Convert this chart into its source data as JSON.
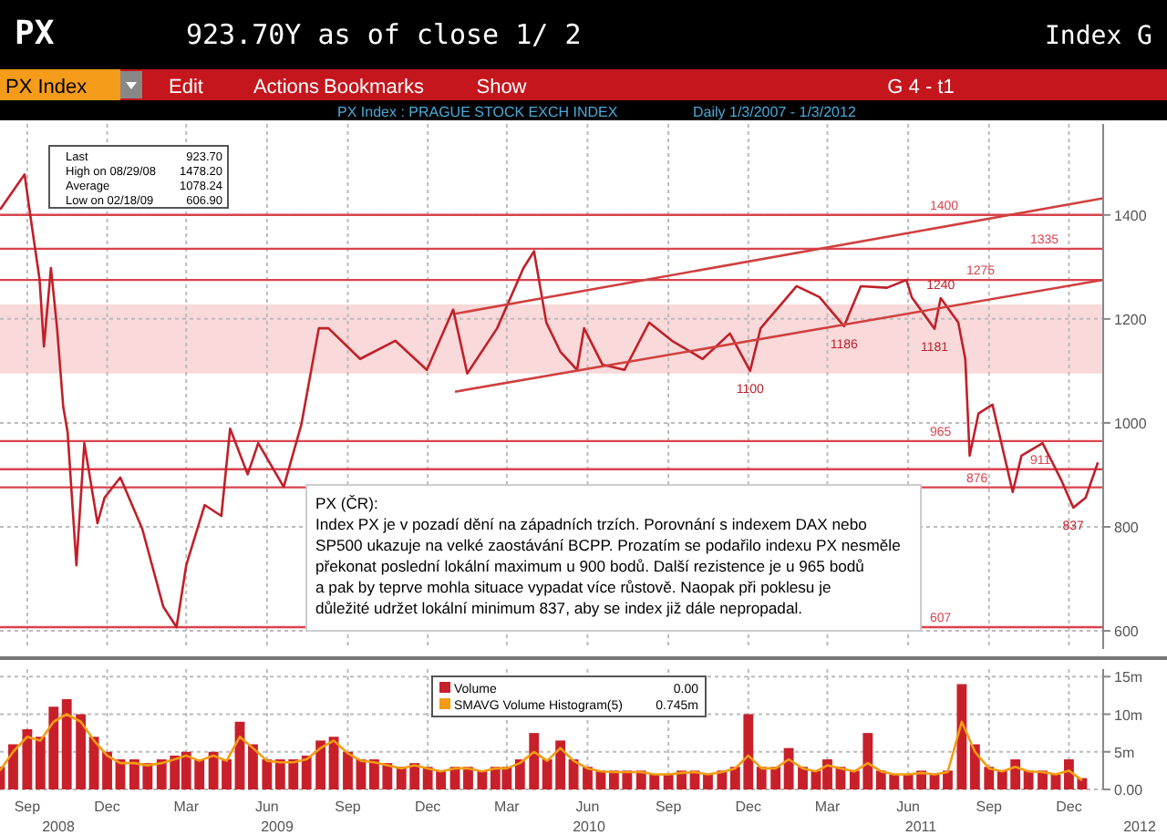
{
  "chart_data": [
    {
      "type": "line",
      "title": "PX Index  :  PRAGUE STOCK EXCH INDEX",
      "subtitle": "Daily    1/3/2007 - 1/3/2012",
      "annotations": [
        "PX",
        "923.70Y as of close  1/ 2",
        "Index G",
        "PX Index",
        "Edit",
        "Actions",
        "Bookmarks",
        "Show",
        "G 4 - t1",
        "Last",
        "923.70",
        "High on 08/29/08",
        "1478.20",
        "Average",
        "1078.24",
        "Low on 02/18/09",
        "606.90",
        "PX (ČR):\nIndex PX je v pozadí dění na západních trzích. Porovnání s indexem DAX nebo\nSP500 ukazuje na velké zaostávání BCPP. Prozatím se podařilo indexu PX nesměle\npřekonat poslední lokální maximum u 900 bodů. Další rezistence je u 965 bodů\na pak by teprve mohla situace vypadat více růstově. Naopak při poklesu je\ndůležité udržet lokální minimum 837, aby se index již dále nepropadal.",
        {
          "text": "1240",
          "x": "2011-07-08",
          "y": 1240
        },
        {
          "text": "1186",
          "x": "2011-03-20",
          "y": 1186
        },
        {
          "text": "1181",
          "x": "2011-07-01",
          "y": 1181
        },
        {
          "text": "1100",
          "x": "2010-12-03",
          "y": 1100
        },
        {
          "text": "837",
          "x": "2011-12-06",
          "y": 837
        }
      ],
      "series": [
        {
          "color": "#c0202a",
          "x": [
            "2008-08-01",
            "2008-08-29",
            "2008-09-05",
            "2008-09-15",
            "2008-09-20",
            "2008-09-28",
            "2008-10-05",
            "2008-10-12",
            "2008-10-17",
            "2008-10-27",
            "2008-11-05",
            "2008-11-20",
            "2008-11-28",
            "2008-12-16",
            "2009-01-10",
            "2009-02-03",
            "2009-02-18",
            "2009-03-01",
            "2009-03-22",
            "2009-04-10",
            "2009-04-20",
            "2009-05-10",
            "2009-05-22",
            "2009-06-20",
            "2009-07-10",
            "2009-07-30",
            "2009-08-10",
            "2009-09-15",
            "2009-10-25",
            "2009-11-30",
            "2009-12-30",
            "2010-01-15",
            "2010-02-18",
            "2010-03-20",
            "2010-04-01",
            "2010-04-15",
            "2010-05-01",
            "2010-05-20",
            "2010-05-28",
            "2010-06-18",
            "2010-07-13",
            "2010-08-10",
            "2010-09-05",
            "2010-10-10",
            "2010-11-10",
            "2010-12-03",
            "2010-12-15",
            "2011-01-25",
            "2011-02-20",
            "2011-03-20",
            "2011-04-08",
            "2011-05-08",
            "2011-05-30",
            "2011-06-05",
            "2011-07-01",
            "2011-07-08",
            "2011-07-28",
            "2011-08-05",
            "2011-08-10",
            "2011-08-20",
            "2011-09-05",
            "2011-09-28",
            "2011-10-08",
            "2011-11-01",
            "2011-11-22",
            "2011-12-06",
            "2011-12-20",
            "2012-01-03"
          ],
          "values": [
            1410,
            1478,
            1393,
            1277,
            1147,
            1298,
            1182,
            1031,
            982,
            726,
            961,
            807,
            856,
            895,
            796,
            646,
            607,
            726,
            842,
            821,
            989,
            901,
            961,
            877,
            996,
            1182,
            1182,
            1123,
            1158,
            1102,
            1218,
            1095,
            1182,
            1298,
            1330,
            1193,
            1137,
            1102,
            1182,
            1112,
            1102,
            1193,
            1158,
            1123,
            1172,
            1100,
            1182,
            1263,
            1242,
            1186,
            1263,
            1260,
            1275,
            1242,
            1181,
            1240,
            1193,
            1123,
            937,
            1018,
            1035,
            867,
            937,
            961,
            891,
            837,
            856,
            924
          ]
        },
        {
          "type": "line",
          "color": "#d04040",
          "x": [
            "2010-01-01",
            "2012-01-09"
          ],
          "values": [
            1210,
            1432
          ]
        },
        {
          "type": "line",
          "color": "#d04040",
          "x": [
            "2010-01-01",
            "2012-01-09"
          ],
          "values": [
            1060,
            1275
          ]
        }
      ],
      "bands": [
        {
          "axis": "y",
          "from": 1095,
          "to": 1228,
          "color": "#f8d0d0"
        }
      ],
      "ref_lines": [
        {
          "axis": "y",
          "value": 1400,
          "label": "1400",
          "color": "#d9434e"
        },
        {
          "axis": "y",
          "value": 1335,
          "label": "1335",
          "color": "#d9434e"
        },
        {
          "axis": "y",
          "value": 1275,
          "label": "1275",
          "color": "#d9434e"
        },
        {
          "axis": "y",
          "value": 965,
          "label": "965",
          "color": "#d9434e"
        },
        {
          "axis": "y",
          "value": 911,
          "label": "911",
          "color": "#d9434e"
        },
        {
          "axis": "y",
          "value": 876,
          "label": "876",
          "color": "#d9434e"
        },
        {
          "axis": "y",
          "value": 607,
          "label": "607",
          "color": "#d9434e"
        }
      ],
      "xlim": [
        "2008-08-01",
        "2012-01-09"
      ],
      "xticks": [
        {
          "value": "2008-09-01",
          "label": null
        },
        {
          "value": "2008-12-01",
          "label": null
        },
        {
          "value": "2009-03-01",
          "label": null
        },
        {
          "value": "2009-06-01",
          "label": null
        },
        {
          "value": "2009-09-01",
          "label": null
        },
        {
          "value": "2009-12-01",
          "label": null
        },
        {
          "value": "2010-03-01",
          "label": null
        },
        {
          "value": "2010-06-01",
          "label": null
        },
        {
          "value": "2010-09-01",
          "label": null
        },
        {
          "value": "2010-12-01",
          "label": null
        },
        {
          "value": "2011-03-01",
          "label": null
        },
        {
          "value": "2011-06-01",
          "label": null
        },
        {
          "value": "2011-09-01",
          "label": null
        },
        {
          "value": "2011-12-01",
          "label": null
        }
      ],
      "ylim": [
        565,
        1575
      ],
      "yticks": [
        600,
        800,
        1000,
        1200,
        1400
      ],
      "grid": true,
      "tick_labels": "y",
      "legend": false
    },
    {
      "type": "bar",
      "annotations": [
        "0.00",
        "0.745m",
        "2008",
        "2009",
        "2010",
        "2011",
        "2012"
      ],
      "x": [
        "2008-08-01",
        "2008-08-16",
        "2008-09-01",
        "2008-09-16",
        "2008-10-01",
        "2008-10-16",
        "2008-11-01",
        "2008-11-16",
        "2008-12-01",
        "2008-12-16",
        "2009-01-01",
        "2009-01-16",
        "2009-02-01",
        "2009-02-16",
        "2009-03-01",
        "2009-03-16",
        "2009-04-01",
        "2009-04-16",
        "2009-05-01",
        "2009-05-16",
        "2009-06-01",
        "2009-06-16",
        "2009-07-01",
        "2009-07-16",
        "2009-08-01",
        "2009-08-16",
        "2009-09-01",
        "2009-09-16",
        "2009-10-01",
        "2009-10-16",
        "2009-11-01",
        "2009-11-16",
        "2009-12-01",
        "2009-12-16",
        "2010-01-01",
        "2010-01-16",
        "2010-02-01",
        "2010-02-16",
        "2010-03-01",
        "2010-03-16",
        "2010-04-01",
        "2010-04-16",
        "2010-05-01",
        "2010-05-16",
        "2010-06-01",
        "2010-06-16",
        "2010-07-01",
        "2010-07-16",
        "2010-08-01",
        "2010-08-16",
        "2010-09-01",
        "2010-09-16",
        "2010-10-01",
        "2010-10-16",
        "2010-11-01",
        "2010-11-16",
        "2010-12-01",
        "2010-12-16",
        "2011-01-01",
        "2011-01-16",
        "2011-02-01",
        "2011-02-16",
        "2011-03-01",
        "2011-03-16",
        "2011-04-01",
        "2011-04-16",
        "2011-05-01",
        "2011-05-16",
        "2011-06-01",
        "2011-06-16",
        "2011-07-01",
        "2011-07-16",
        "2011-08-01",
        "2011-08-16",
        "2011-09-01",
        "2011-09-16",
        "2011-10-01",
        "2011-10-16",
        "2011-11-01",
        "2011-11-16",
        "2011-12-01",
        "2011-12-16"
      ],
      "series": [
        {
          "name": "Volume",
          "color": "#c8202a",
          "values": [
            3,
            6,
            8,
            7,
            11,
            12,
            10,
            7,
            5,
            4,
            4,
            3.5,
            4,
            4.5,
            5,
            4,
            5,
            4,
            9,
            6,
            4,
            4,
            4,
            4.5,
            6.5,
            7,
            5,
            4,
            4,
            3.5,
            3,
            3.5,
            3,
            2.5,
            3,
            3,
            2.5,
            3,
            3,
            4,
            7.5,
            4,
            6.5,
            4,
            3,
            2.5,
            2.5,
            2.5,
            2.5,
            2,
            2,
            2.5,
            2.5,
            2,
            2.5,
            3,
            10,
            3,
            3,
            5.5,
            3,
            2.5,
            4,
            3,
            2.5,
            7.5,
            2.5,
            2,
            2,
            2.5,
            2,
            2.5,
            14,
            6,
            3,
            2.5,
            4,
            2.5,
            2.5,
            2,
            4,
            1.5
          ]
        },
        {
          "name": "SMAVG Volume Histogram(5)",
          "type": "line",
          "color": "#f39c12",
          "values": [
            2.5,
            5,
            7,
            6.5,
            9,
            10,
            9,
            6.5,
            4.5,
            3.5,
            3.5,
            3.2,
            3.5,
            4,
            4.5,
            3.8,
            4.5,
            3.8,
            7,
            5.5,
            3.8,
            3.6,
            3.6,
            4,
            5.5,
            6.5,
            4.8,
            3.8,
            3.6,
            3.2,
            2.8,
            3.2,
            2.8,
            2.4,
            2.8,
            2.8,
            2.4,
            2.8,
            2.8,
            3.5,
            5,
            3.8,
            5.5,
            3.8,
            2.8,
            2.4,
            2.3,
            2.3,
            2.3,
            2,
            2,
            2.2,
            2.3,
            2,
            2.3,
            2.8,
            4.5,
            2.8,
            2.8,
            4,
            2.8,
            2.4,
            3.2,
            2.8,
            2.4,
            3.5,
            2.4,
            2,
            2,
            2.2,
            2,
            2.3,
            9,
            5,
            2.8,
            2.4,
            3,
            2.4,
            2.3,
            2,
            2.5,
            1.2
          ]
        }
      ],
      "xlim": [
        "2008-08-01",
        "2012-01-09"
      ],
      "xticks": [
        {
          "value": "2008-09-01",
          "label": "Sep"
        },
        {
          "value": "2008-12-01",
          "label": "Dec"
        },
        {
          "value": "2009-03-01",
          "label": "Mar"
        },
        {
          "value": "2009-06-01",
          "label": "Jun"
        },
        {
          "value": "2009-09-01",
          "label": "Sep"
        },
        {
          "value": "2009-12-01",
          "label": "Dec"
        },
        {
          "value": "2010-03-01",
          "label": "Mar"
        },
        {
          "value": "2010-06-01",
          "label": "Jun"
        },
        {
          "value": "2010-09-01",
          "label": "Sep"
        },
        {
          "value": "2010-12-01",
          "label": "Dec"
        },
        {
          "value": "2011-03-01",
          "label": "Mar"
        },
        {
          "value": "2011-06-01",
          "label": "Jun"
        },
        {
          "value": "2011-09-01",
          "label": "Sep"
        },
        {
          "value": "2011-12-01",
          "label": "Dec"
        }
      ],
      "ylim": [
        0,
        16
      ],
      "yticks": [
        {
          "value": 0,
          "label": "0.00"
        },
        {
          "value": 5,
          "label": "5m"
        },
        {
          "value": 10,
          "label": "10m"
        },
        {
          "value": 15,
          "label": "15m"
        }
      ],
      "grid": true,
      "legend": "top"
    }
  ]
}
